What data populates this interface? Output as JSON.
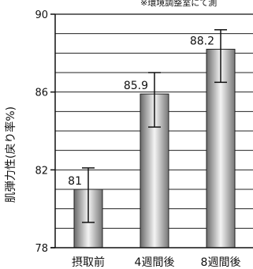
{
  "note": "※環境調整室にて測",
  "chart_data": {
    "type": "bar",
    "categories": [
      "摂取前",
      "4週間後",
      "8週間後"
    ],
    "values": [
      81,
      85.9,
      88.2
    ],
    "value_labels": [
      "81",
      "85.9",
      "88.2"
    ],
    "error": [
      [
        79.3,
        82.1
      ],
      [
        84.2,
        87.0
      ],
      [
        86.5,
        89.2
      ]
    ],
    "ylabel": "肌弾力性(戻り率%)",
    "ylim": [
      78,
      90
    ],
    "yticks": [
      78,
      82,
      86,
      90
    ],
    "ytick_labels": [
      "78",
      "82",
      "86",
      "90"
    ],
    "grid": true,
    "grid_step": 1
  }
}
